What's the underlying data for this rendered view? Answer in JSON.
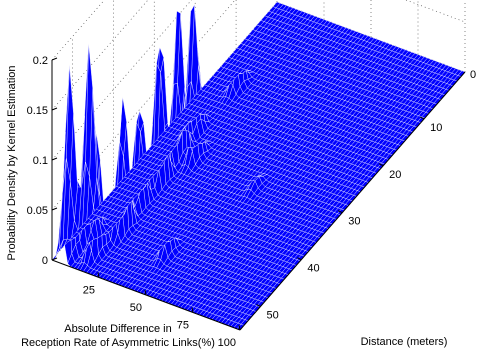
{
  "chart_data": {
    "type": "3d-surface",
    "title": "",
    "zlabel": "Probability Density by Kernel Estimation",
    "xlabel_lines": [
      "Absolute Difference in",
      "Reception Rate of Asymmetric Links(%)"
    ],
    "ylabel": "Distance (meters)",
    "x_ticks": [
      "25",
      "50",
      "75",
      "100"
    ],
    "x_tick_values": [
      25,
      50,
      75,
      100
    ],
    "y_ticks": [
      "10",
      "20",
      "30",
      "40",
      "50"
    ],
    "y_tick_values": [
      10,
      20,
      30,
      40,
      50
    ],
    "y_edge_tick": "0",
    "z_ticks": [
      "0",
      "0.05",
      "0.1",
      "0.15",
      "0.2"
    ],
    "z_tick_values": [
      0,
      0.05,
      0.1,
      0.15,
      0.2
    ],
    "xlim": [
      0,
      100
    ],
    "ylim": [
      0,
      55
    ],
    "zlim": [
      0,
      0.2
    ],
    "grid": true,
    "surface_color": "#0000ff",
    "peaks": [
      {
        "x": 5,
        "y": 53,
        "z": 0.19
      },
      {
        "x": 7,
        "y": 49,
        "z": 0.2
      },
      {
        "x": 15,
        "y": 51,
        "z": 0.12
      },
      {
        "x": 18,
        "y": 46,
        "z": 0.14
      },
      {
        "x": 16,
        "y": 41,
        "z": 0.11
      },
      {
        "x": 16,
        "y": 36,
        "z": 0.16
      },
      {
        "x": 15,
        "y": 31,
        "z": 0.16
      },
      {
        "x": 12,
        "y": 26,
        "z": 0.14
      },
      {
        "x": 22,
        "y": 30,
        "z": 0.05
      },
      {
        "x": 14,
        "y": 16,
        "z": 0.04
      },
      {
        "x": 44,
        "y": 47,
        "z": 0.03
      },
      {
        "x": 56,
        "y": 31,
        "z": 0.01
      }
    ]
  }
}
